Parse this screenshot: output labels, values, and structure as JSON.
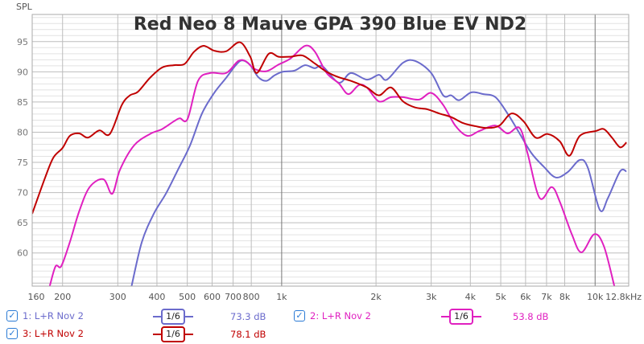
{
  "chart_data": {
    "type": "line",
    "title": "Red Neo 8 Mauve GPA 390 Blue EV ND2",
    "ylabel": "SPL",
    "xlabel": "Hz",
    "xscale": "log",
    "xlim": [
      160,
      12800
    ],
    "ylim": [
      54.5,
      99.5
    ],
    "grid": true,
    "yticks": [
      60,
      65,
      70,
      75,
      80,
      85,
      90,
      95
    ],
    "xticks": [
      {
        "f": 160,
        "label": "160"
      },
      {
        "f": 200,
        "label": "200"
      },
      {
        "f": 300,
        "label": "300"
      },
      {
        "f": 400,
        "label": "400"
      },
      {
        "f": 500,
        "label": "500"
      },
      {
        "f": 600,
        "label": "600"
      },
      {
        "f": 700,
        "label": "700"
      },
      {
        "f": 800,
        "label": "800"
      },
      {
        "f": 1000,
        "label": "1k"
      },
      {
        "f": 2000,
        "label": "2k"
      },
      {
        "f": 3000,
        "label": "3k"
      },
      {
        "f": 4000,
        "label": "4k"
      },
      {
        "f": 5000,
        "label": "5k"
      },
      {
        "f": 6000,
        "label": "6k"
      },
      {
        "f": 7000,
        "label": "7k"
      },
      {
        "f": 8000,
        "label": "8k"
      },
      {
        "f": 10000,
        "label": "10k"
      },
      {
        "f": 12800,
        "label": "12.8kHz"
      }
    ],
    "series": [
      {
        "name": "1: L+R Nov 2",
        "color": "#6b6bcc",
        "smoothing": "1/6",
        "value": "73.3 dB",
        "x": [
          332,
          358,
          391,
          427,
          467,
          510,
          557,
          609,
          665,
          714,
          749,
          794,
          843,
          894,
          948,
          1006,
          1099,
          1187,
          1274,
          1351,
          1521,
          1662,
          1870,
          2043,
          2167,
          2439,
          2665,
          3000,
          3277,
          3475,
          3687,
          4029,
          4401,
          4809,
          5254,
          5741,
          6272,
          6855,
          7488,
          8180,
          8940,
          9482,
          10360,
          10990,
          12010,
          12590
        ],
        "y": [
          54.5,
          61.8,
          66.5,
          69.8,
          73.8,
          77.8,
          83.1,
          86.5,
          89,
          91.1,
          91.9,
          91.1,
          89.1,
          88.5,
          89.4,
          90,
          90.2,
          91.1,
          90.6,
          90.9,
          88.2,
          89.8,
          88.7,
          89.5,
          88.7,
          91.5,
          91.8,
          89.8,
          86.1,
          86.1,
          85.3,
          86.6,
          86.3,
          85.8,
          83.1,
          79.8,
          76.5,
          74.3,
          72.5,
          73.4,
          75.4,
          74.1,
          67.1,
          69.1,
          73.5,
          73.5
        ]
      },
      {
        "name": "2: L+R Nov 2",
        "color": "#e020c0",
        "smoothing": "1/6",
        "value": "53.8 dB",
        "x": [
          182,
          190,
          198,
          211,
          226,
          244,
          270,
          288,
          305,
          338,
          380,
          415,
          453,
          473,
          501,
          541,
          591,
          665,
          727,
          771,
          818,
          894,
          977,
          1067,
          1187,
          1274,
          1392,
          1521,
          1632,
          1763,
          1870,
          2043,
          2232,
          2439,
          2745,
          3000,
          3277,
          3580,
          3911,
          4273,
          4809,
          5254,
          5741,
          6089,
          6654,
          7270,
          7713,
          8426,
          9045,
          9940,
          10670,
          11520
        ],
        "y": [
          54.5,
          57.8,
          57.8,
          61.8,
          66.9,
          70.9,
          72.2,
          69.8,
          73.8,
          77.8,
          79.7,
          80.5,
          81.8,
          82.3,
          82.2,
          88.5,
          89.8,
          89.8,
          91.8,
          91.7,
          90.5,
          90.1,
          91.2,
          92.2,
          94.3,
          93.4,
          89.8,
          88.1,
          86.3,
          87.8,
          87.4,
          85.1,
          85.8,
          85.8,
          85.4,
          86.5,
          84.5,
          81.1,
          79.4,
          80.2,
          81.1,
          79.8,
          80.7,
          76.5,
          69.1,
          70.9,
          68.5,
          63.1,
          60.1,
          63.1,
          61.1,
          54.5
        ]
      },
      {
        "name": "3: L+R Nov 2",
        "color": "#c00000",
        "smoothing": "1/6",
        "value": "78.1 dB",
        "x": [
          160,
          176,
          187,
          200,
          211,
          226,
          241,
          262,
          283,
          309,
          328,
          348,
          380,
          415,
          453,
          490,
          525,
          564,
          609,
          665,
          736,
          794,
          833,
          910,
          977,
          1067,
          1166,
          1274,
          1392,
          1521,
          1662,
          1870,
          2043,
          2232,
          2439,
          2665,
          2912,
          3181,
          3475,
          3797,
          4150,
          4533,
          4953,
          5411,
          5912,
          6460,
          7059,
          7713,
          8280,
          8940,
          10060,
          10670,
          11320,
          12010,
          12590
        ],
        "y": [
          66.5,
          72.5,
          75.8,
          77.4,
          79.4,
          79.8,
          79.1,
          80.3,
          79.7,
          84.5,
          86.1,
          86.7,
          89,
          90.7,
          91.1,
          91.3,
          93.3,
          94.3,
          93.5,
          93.4,
          94.9,
          92.5,
          89.8,
          93,
          92.5,
          92.5,
          92.7,
          91.4,
          90,
          89.1,
          88.5,
          87.4,
          86.1,
          87.4,
          85.1,
          84.1,
          83.8,
          83.1,
          82.5,
          81.5,
          81,
          80.7,
          81.1,
          83.1,
          81.8,
          79.1,
          79.7,
          78.5,
          76.1,
          79.4,
          80.2,
          80.5,
          79.1,
          77.5,
          78.3
        ]
      }
    ]
  }
}
